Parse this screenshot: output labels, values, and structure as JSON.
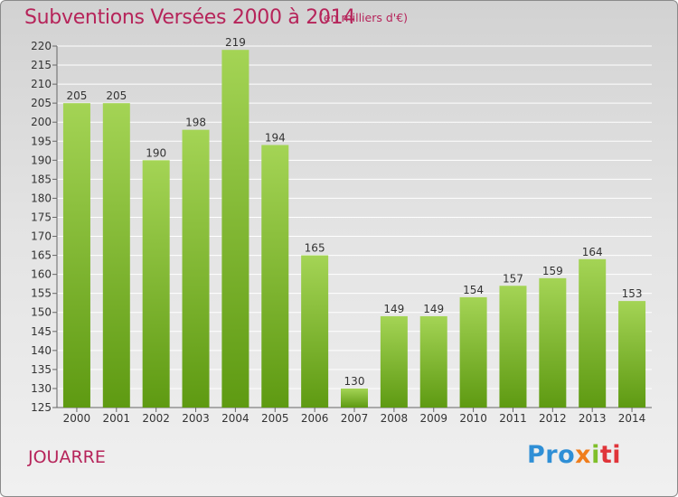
{
  "header": {
    "title": "Subventions Versées 2000 à 2014",
    "subtitle": "(en milliers d'€)"
  },
  "footer": {
    "place": "JOUARRE",
    "logo_parts": [
      "Pro",
      "x",
      "i",
      "ti"
    ]
  },
  "colors": {
    "title": "#b6245a",
    "bar_light": "#a4d455",
    "bar_dark": "#5e9a12",
    "grid": "#ffffff",
    "logo_blue": "#2f8fd6",
    "logo_orange": "#f07d1c",
    "logo_green": "#7fbf2a",
    "logo_red": "#e0353a"
  },
  "chart_data": {
    "type": "bar",
    "title": "Subventions Versées 2000 à 2014",
    "subtitle": "(en milliers d'€)",
    "categories": [
      "2000",
      "2001",
      "2002",
      "2003",
      "2004",
      "2005",
      "2006",
      "2007",
      "2008",
      "2009",
      "2010",
      "2011",
      "2012",
      "2013",
      "2014"
    ],
    "values": [
      205,
      205,
      190,
      198,
      219,
      194,
      165,
      130,
      149,
      149,
      154,
      157,
      159,
      164,
      153
    ],
    "ylim": [
      125,
      220
    ],
    "yticks": [
      125,
      130,
      135,
      140,
      145,
      150,
      155,
      160,
      165,
      170,
      175,
      180,
      185,
      190,
      195,
      200,
      205,
      210,
      215,
      220
    ],
    "grid": true
  }
}
